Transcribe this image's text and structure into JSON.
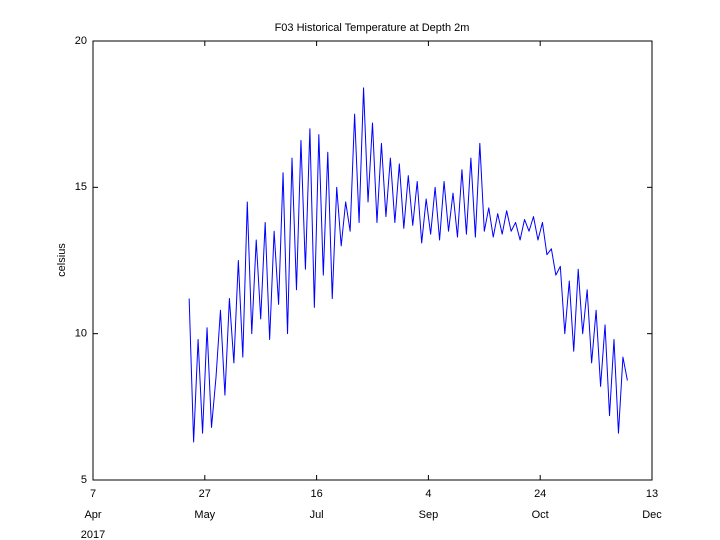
{
  "chart_data": {
    "type": "line",
    "title": "F03 Historical Temperature at Depth 2m",
    "y_label": "celsius",
    "x_year_label": "2017",
    "x": [
      "2017-05-20",
      "2017-05-22",
      "2017-05-24",
      "2017-05-26",
      "2017-05-28",
      "2017-05-30",
      "2017-06-01",
      "2017-06-03",
      "2017-06-05",
      "2017-06-07",
      "2017-06-09",
      "2017-06-11",
      "2017-06-13",
      "2017-06-15",
      "2017-06-17",
      "2017-06-19",
      "2017-06-21",
      "2017-06-23",
      "2017-06-25",
      "2017-06-27",
      "2017-06-29",
      "2017-07-01",
      "2017-07-03",
      "2017-07-05",
      "2017-07-07",
      "2017-07-09",
      "2017-07-11",
      "2017-07-13",
      "2017-07-15",
      "2017-07-17",
      "2017-07-19",
      "2017-07-21",
      "2017-07-23",
      "2017-07-25",
      "2017-07-27",
      "2017-07-29",
      "2017-07-31",
      "2017-08-02",
      "2017-08-04",
      "2017-08-06",
      "2017-08-08",
      "2017-08-10",
      "2017-08-12",
      "2017-08-14",
      "2017-08-16",
      "2017-08-18",
      "2017-08-20",
      "2017-08-22",
      "2017-08-24",
      "2017-08-26",
      "2017-08-28",
      "2017-08-30",
      "2017-09-01",
      "2017-09-03",
      "2017-09-05",
      "2017-09-07",
      "2017-09-09",
      "2017-09-11",
      "2017-09-13",
      "2017-09-15",
      "2017-09-17",
      "2017-09-19",
      "2017-09-21",
      "2017-09-23",
      "2017-09-25",
      "2017-09-27",
      "2017-09-29",
      "2017-10-01",
      "2017-10-03",
      "2017-10-05",
      "2017-10-07",
      "2017-10-09",
      "2017-10-11",
      "2017-10-13",
      "2017-10-15",
      "2017-10-17",
      "2017-10-19",
      "2017-10-21",
      "2017-10-23",
      "2017-10-25",
      "2017-10-27",
      "2017-10-29",
      "2017-10-31",
      "2017-11-02",
      "2017-11-04",
      "2017-11-06",
      "2017-11-08",
      "2017-11-10",
      "2017-11-12",
      "2017-11-14",
      "2017-11-16",
      "2017-11-18",
      "2017-11-20",
      "2017-11-22",
      "2017-11-24",
      "2017-11-26",
      "2017-11-28",
      "2017-11-30",
      "2017-12-02"
    ],
    "series": [
      {
        "name": "temperature",
        "color": "#0000ff",
        "values": [
          11.2,
          6.3,
          9.8,
          6.6,
          10.2,
          6.8,
          8.5,
          10.8,
          7.9,
          11.2,
          9.0,
          12.5,
          9.2,
          14.5,
          10.0,
          13.2,
          10.5,
          13.8,
          9.8,
          13.5,
          11.0,
          15.5,
          10.0,
          16.0,
          11.5,
          16.6,
          12.2,
          17.0,
          10.9,
          16.8,
          12.0,
          16.2,
          11.2,
          15.0,
          13.0,
          14.5,
          13.5,
          17.5,
          13.8,
          18.4,
          14.5,
          17.2,
          13.8,
          16.5,
          14.0,
          16.0,
          13.8,
          15.8,
          13.6,
          15.4,
          13.7,
          15.2,
          13.1,
          14.6,
          13.4,
          15.0,
          13.2,
          15.2,
          13.5,
          14.8,
          13.3,
          15.6,
          13.4,
          16.0,
          13.3,
          16.5,
          13.5,
          14.3,
          13.3,
          14.1,
          13.4,
          14.2,
          13.5,
          13.8,
          13.2,
          13.9,
          13.5,
          14.0,
          13.2,
          13.8,
          12.7,
          12.9,
          12.0,
          12.3,
          10.0,
          11.8,
          9.4,
          12.2,
          10.0,
          11.5,
          9.0,
          10.8,
          8.2,
          10.3,
          7.2,
          9.8,
          6.6,
          9.2,
          8.4
        ]
      }
    ],
    "xlim": [
      "2017-04-07",
      "2017-12-13"
    ],
    "xticks": [
      {
        "value": "2017-04-07",
        "label": "7",
        "month": "Apr"
      },
      {
        "value": "2017-05-27",
        "label": "27",
        "month": "May"
      },
      {
        "value": "2017-07-16",
        "label": "16",
        "month": "Jul"
      },
      {
        "value": "2017-09-04",
        "label": "4",
        "month": "Sep"
      },
      {
        "value": "2017-10-24",
        "label": "24",
        "month": "Oct"
      },
      {
        "value": "2017-12-13",
        "label": "13",
        "month": "Dec"
      }
    ],
    "ylim": [
      5,
      20
    ],
    "yticks": [
      5,
      10,
      15,
      20
    ],
    "grid": false
  }
}
